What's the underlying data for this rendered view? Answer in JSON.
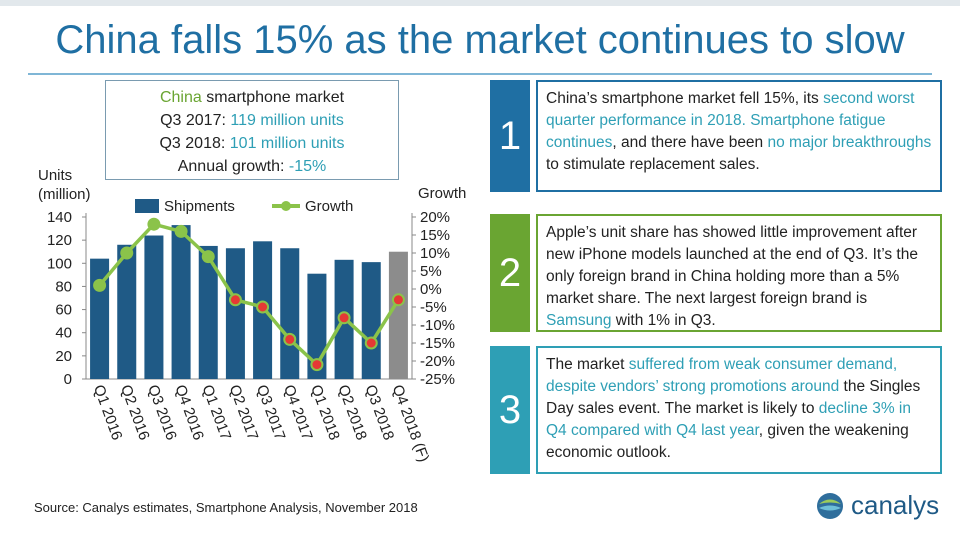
{
  "title": "China falls 15% as the market continues to slow",
  "info_box": {
    "line1_hl": "China",
    "line1_rest": " smartphone  market",
    "line2_label": "Q3 2017: ",
    "line2_value": "119 million units",
    "line3_label": "Q3 2018: ",
    "line3_value": "101 million units",
    "line4_label": "Annual growth: ",
    "line4_value": "-15%"
  },
  "chart_data": {
    "type": "bar",
    "categories": [
      "Q1 2016",
      "Q2 2016",
      "Q3 2016",
      "Q4 2016",
      "Q1 2017",
      "Q2 2017",
      "Q3 2017",
      "Q4 2017",
      "Q1 2018",
      "Q2 2018",
      "Q3 2018",
      "Q4 2018 (F)"
    ],
    "series": [
      {
        "name": "Shipments",
        "kind": "bar",
        "axis": "left",
        "values": [
          104,
          116,
          124,
          133,
          115,
          113,
          119,
          113,
          91,
          103,
          101,
          110
        ],
        "color": "#1f5a86",
        "forecast_color": "#8c8c8c"
      },
      {
        "name": "Growth",
        "kind": "line",
        "axis": "right",
        "values": [
          1,
          10,
          18,
          16,
          9,
          -3,
          -5,
          -14,
          -21,
          -8,
          -15,
          -3
        ],
        "color": "#8bc34a"
      }
    ],
    "ylabel": "Units\n(million)",
    "ylabel_lines": [
      "Units",
      "(million)"
    ],
    "y2label": "Growth",
    "ylim": [
      0,
      140
    ],
    "yticks": [
      "0",
      "20",
      "40",
      "60",
      "80",
      "100",
      "120",
      "140"
    ],
    "y2lim": [
      -25,
      20
    ],
    "y2ticks": [
      "20%",
      "15%",
      "10%",
      "5%",
      "0%",
      "-5%",
      "-10%",
      "-15%",
      "-20%",
      "-25%"
    ],
    "legend": "top"
  },
  "source": "Source:  Canalys estimates, Smartphone  Analysis, November  2018",
  "cards": [
    {
      "number": "1",
      "color": "#1f6fa3",
      "border": "#1f6fa3",
      "segments": [
        {
          "t": "China’s smartphone market fell 15%, its ",
          "hl": false
        },
        {
          "t": "second worst quarter performance in 2018. ",
          "hl": true
        },
        {
          "t": "Smartphone fatigue continues",
          "hl": true
        },
        {
          "t": ", and there have been ",
          "hl": false
        },
        {
          "t": "no major breakthroughs",
          "hl": true
        },
        {
          "t": " to stimulate replacement sales.",
          "hl": false
        }
      ]
    },
    {
      "number": "2",
      "color": "#6aa532",
      "border": "#6aa532",
      "segments": [
        {
          "t": "Apple’s unit share has showed little improvement after new iPhone models launched at the end of Q3. It’s the only foreign brand in China holding more than a 5% market share. The next largest foreign brand is ",
          "hl": false
        },
        {
          "t": "Samsung",
          "hl": true
        },
        {
          "t": " with 1% in Q3.",
          "hl": false
        }
      ]
    },
    {
      "number": "3",
      "color": "#2e9fb5",
      "border": "#2e9fb5",
      "segments": [
        {
          "t": "The market ",
          "hl": false
        },
        {
          "t": "suffered from weak consumer demand, despite vendors’ strong promotions around",
          "hl": true
        },
        {
          "t": " the Singles Day sales event. The market is likely to ",
          "hl": false
        },
        {
          "t": "decline 3% in Q4 compared with Q4 last year",
          "hl": true
        },
        {
          "t": ", given the weakening economic outlook.",
          "hl": false
        }
      ]
    }
  ],
  "logo": {
    "text": "canalys",
    "icon": "canalys-sphere-icon"
  }
}
